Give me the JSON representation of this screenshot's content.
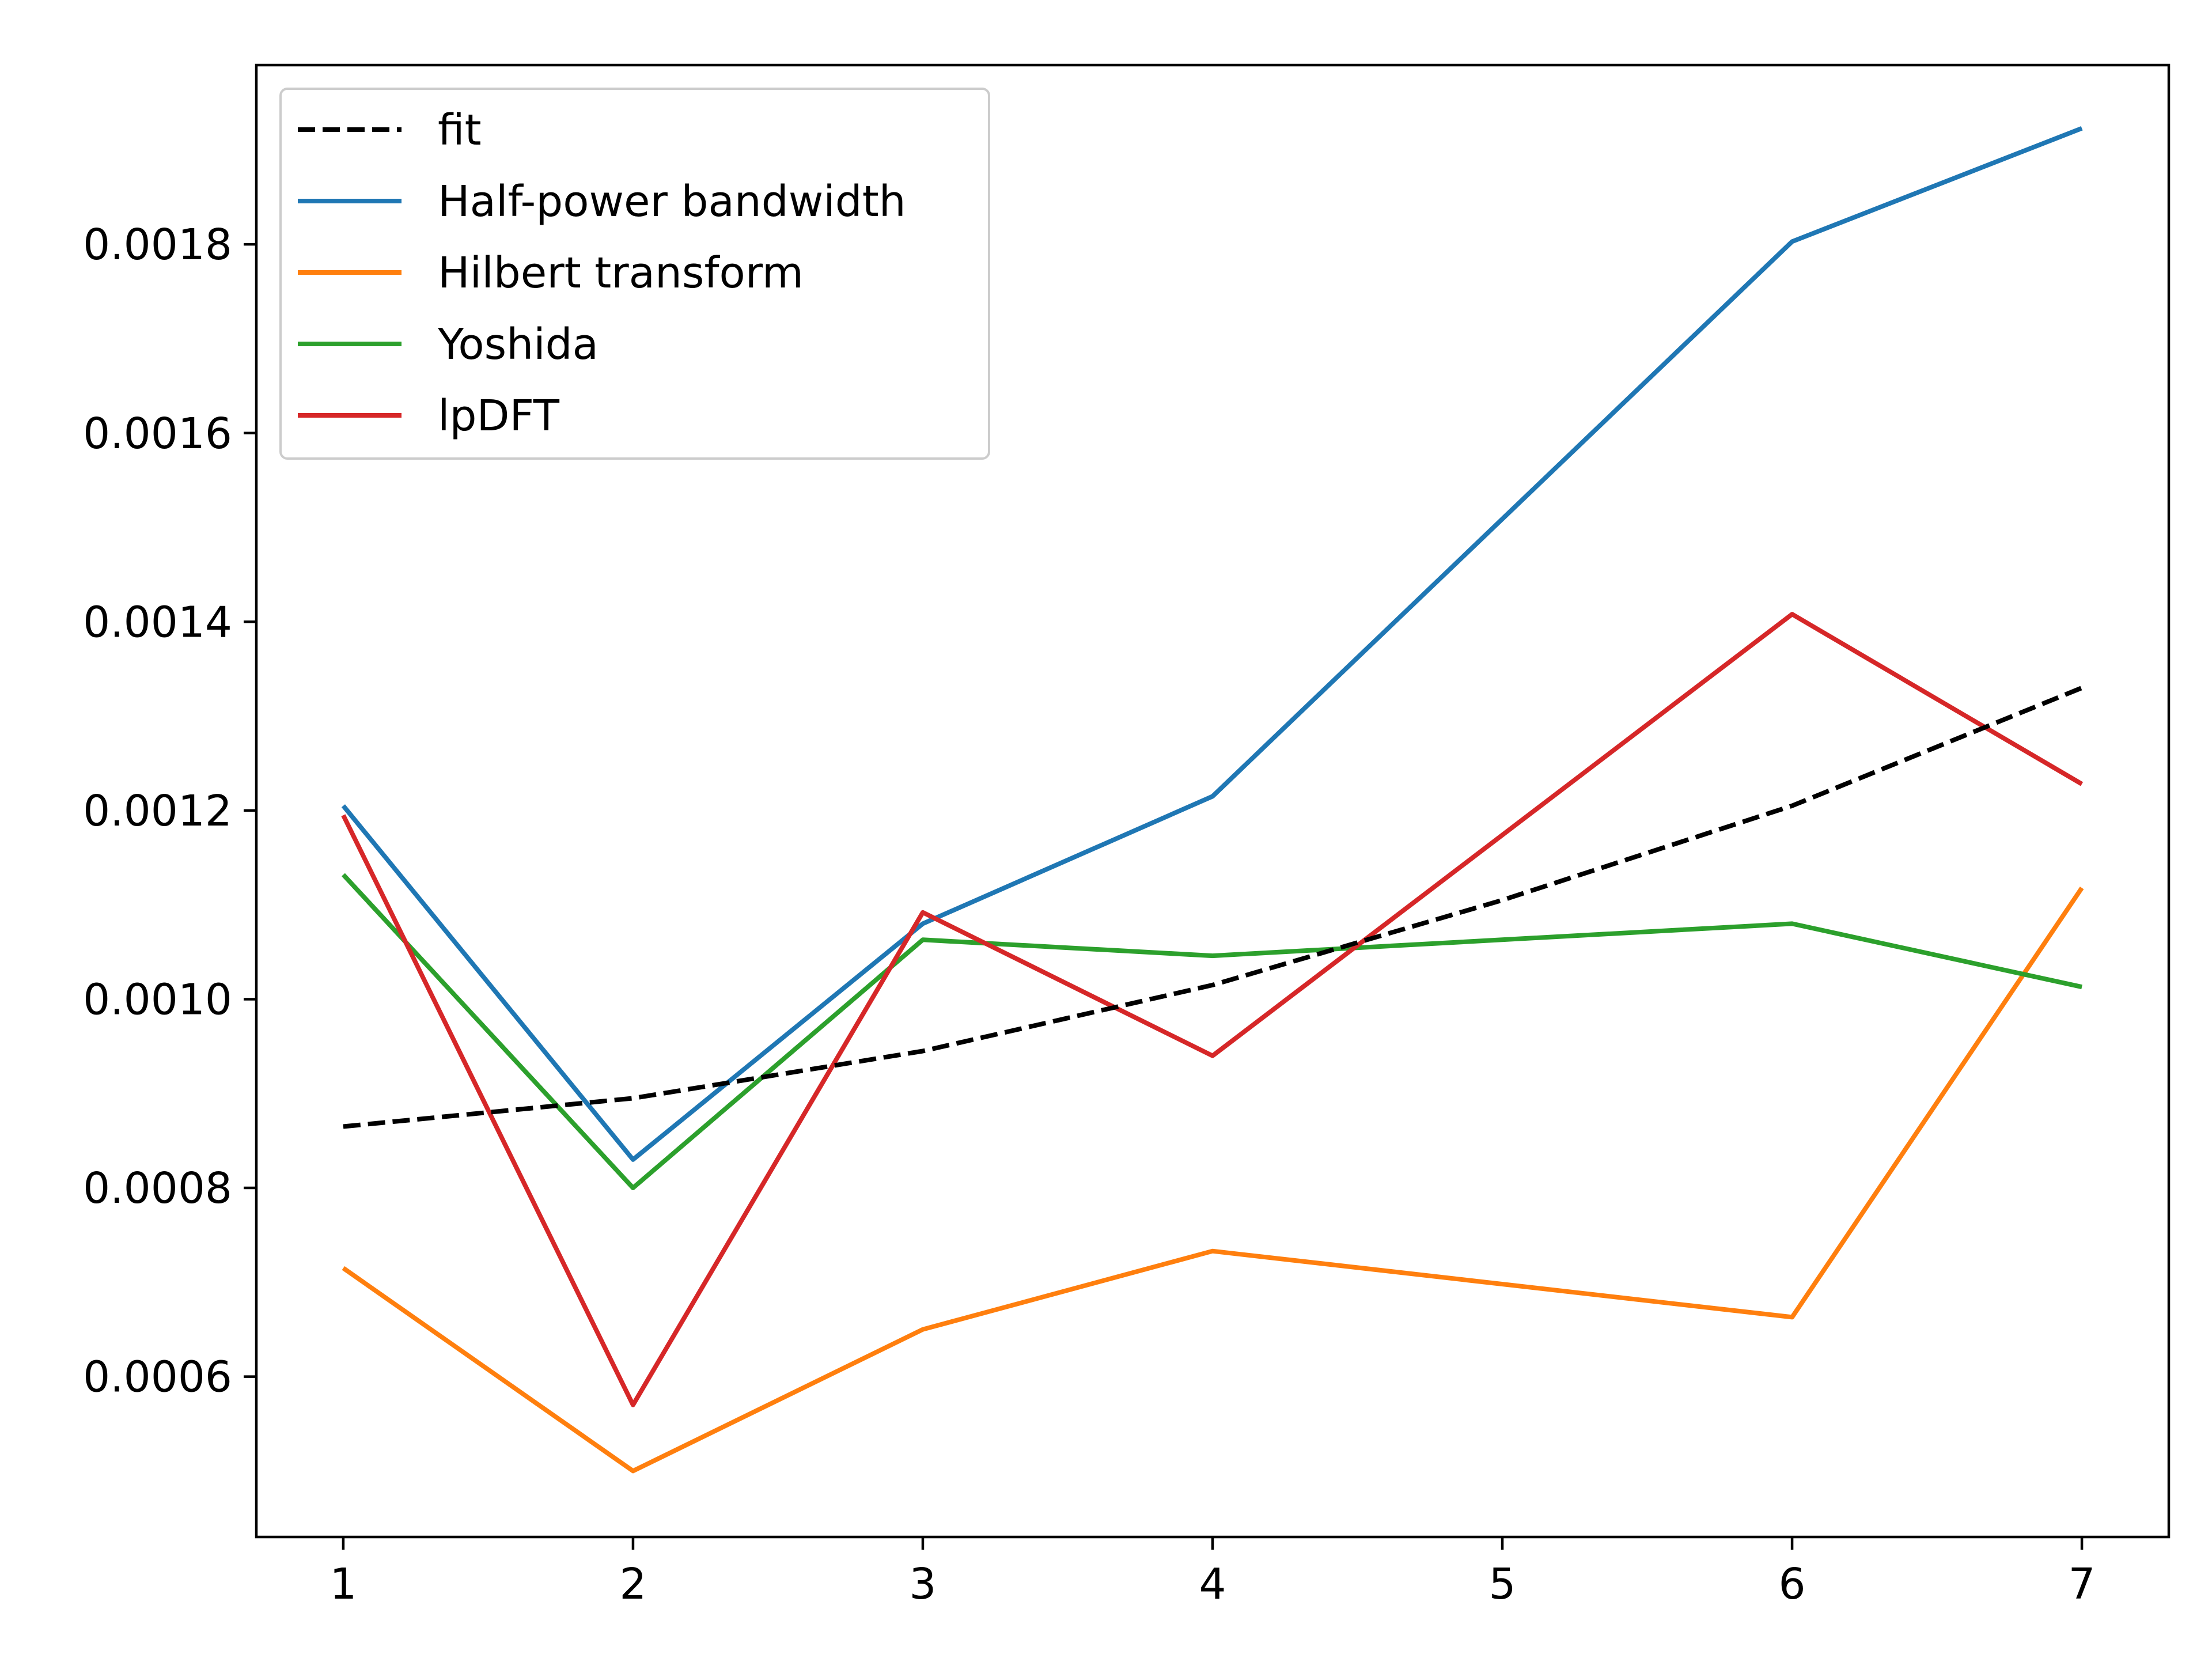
{
  "chart_data": {
    "type": "line",
    "title": "",
    "xlabel": "",
    "ylabel": "",
    "xlim": [
      0.7,
      7.3
    ],
    "ylim": [
      0.00043,
      0.00199
    ],
    "x_ticks": [
      1,
      2,
      3,
      4,
      5,
      6,
      7
    ],
    "x_tick_labels": [
      "1",
      "2",
      "3",
      "4",
      "5",
      "6",
      "7"
    ],
    "y_ticks": [
      0.0006,
      0.0008,
      0.001,
      0.0012,
      0.0014,
      0.0016,
      0.0018
    ],
    "y_tick_labels": [
      "0.0006",
      "0.0008",
      "0.0010",
      "0.0012",
      "0.0014",
      "0.0016",
      "0.0018"
    ],
    "grid": false,
    "legend_position": "upper-left",
    "series": [
      {
        "name": "fit",
        "color": "#000000",
        "dashed": true,
        "x": [
          1,
          2,
          3,
          4,
          5,
          6,
          7
        ],
        "y": [
          0.000865,
          0.000895,
          0.000945,
          0.001015,
          0.001105,
          0.001205,
          0.00133
        ]
      },
      {
        "name": "Half-power bandwidth",
        "color": "#1f77b4",
        "dashed": false,
        "x": [
          1,
          2,
          3,
          4,
          6,
          7
        ],
        "y": [
          0.001205,
          0.00083,
          0.00108,
          0.001215,
          0.001803,
          0.001923
        ]
      },
      {
        "name": "Hilbert transform",
        "color": "#ff7f0e",
        "dashed": false,
        "x": [
          1,
          2,
          3,
          4,
          6,
          7
        ],
        "y": [
          0.000715,
          0.0005,
          0.00065,
          0.000733,
          0.000663,
          0.001118
        ]
      },
      {
        "name": "Yoshida",
        "color": "#2ca02c",
        "dashed": false,
        "x": [
          1,
          2,
          3,
          4,
          6,
          7
        ],
        "y": [
          0.001132,
          0.0008,
          0.001063,
          0.001046,
          0.00108,
          0.001013
        ]
      },
      {
        "name": "lpDFT",
        "color": "#d62728",
        "dashed": false,
        "x": [
          1,
          2,
          3,
          4,
          6,
          7
        ],
        "y": [
          0.001195,
          0.00057,
          0.001092,
          0.00094,
          0.001408,
          0.001228
        ]
      }
    ]
  }
}
